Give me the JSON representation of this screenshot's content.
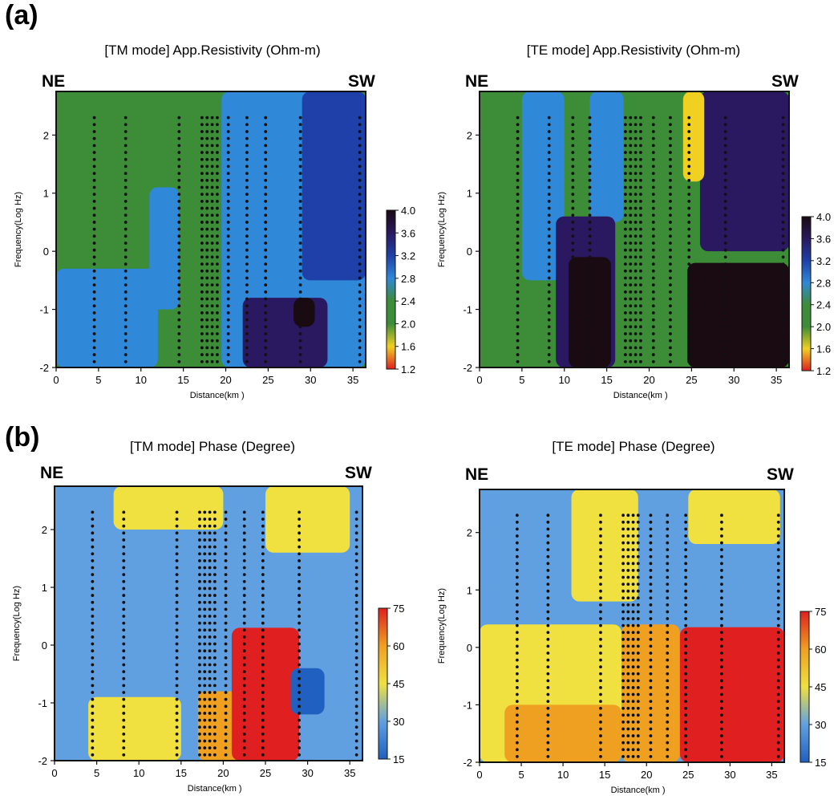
{
  "panels": {
    "a": "(a)",
    "b": "(b)"
  },
  "chart_data": [
    {
      "type": "heatmap",
      "title": "[TM mode] App.Resistivity (Ohm-m)",
      "left_label": "NE",
      "right_label": "SW",
      "xlabel": "Distance(km )",
      "ylabel": "Frequency(Log Hz)",
      "xlim": [
        0,
        36.5
      ],
      "ylim": [
        -2,
        2.75
      ],
      "x_ticks": [
        0,
        5,
        10,
        15,
        20,
        25,
        30,
        35
      ],
      "y_ticks": [
        -2,
        -1,
        0,
        1,
        2
      ],
      "colorbar": {
        "ticks": [
          "4.0",
          "3.6",
          "3.2",
          "2.8",
          "2.4",
          "2.0",
          "1.6",
          "1.2"
        ],
        "colors": [
          "#1a0a12",
          "#2a1860",
          "#1e40a8",
          "#2f88d8",
          "#3c8c38",
          "#3c8c38",
          "#f0d020",
          "#e02020"
        ]
      },
      "stations_km": [
        4.5,
        8.2,
        14.5,
        17.2,
        17.8,
        18.4,
        19.0,
        20.3,
        22.5,
        24.7,
        28.8,
        35.8
      ],
      "dominant_zones": [
        {
          "x": [
            0,
            36.5
          ],
          "y": [
            -2,
            2.75
          ],
          "value": "2.4"
        },
        {
          "x": [
            19.5,
            36.5
          ],
          "y": [
            -2,
            2.75
          ],
          "value": "2.8"
        },
        {
          "x": [
            0,
            12
          ],
          "y": [
            -2,
            -0.3
          ],
          "value": "2.8"
        },
        {
          "x": [
            11,
            14.5
          ],
          "y": [
            -1,
            1.1
          ],
          "value": "2.8"
        },
        {
          "x": [
            29,
            36.5
          ],
          "y": [
            -0.5,
            2.75
          ],
          "value": "3.2"
        },
        {
          "x": [
            22,
            32
          ],
          "y": [
            -2,
            -0.8
          ],
          "value": "3.6"
        },
        {
          "x": [
            28,
            30.5
          ],
          "y": [
            -1.3,
            -0.8
          ],
          "value": "4.0"
        }
      ]
    },
    {
      "type": "heatmap",
      "title": "[TE mode] App.Resistivity (Ohm-m)",
      "left_label": "NE",
      "right_label": "SW",
      "xlabel": "Distance(km )",
      "ylabel": "Frequency(Log Hz)",
      "xlim": [
        0,
        36.5
      ],
      "ylim": [
        -2,
        2.75
      ],
      "x_ticks": [
        0,
        5,
        10,
        15,
        20,
        25,
        30,
        35
      ],
      "y_ticks": [
        -2,
        -1,
        0,
        1,
        2
      ],
      "colorbar": {
        "ticks": [
          "4.0",
          "3.6",
          "3.2",
          "2.8",
          "2.4",
          "2.0",
          "1.6",
          "1.2"
        ],
        "colors": [
          "#1a0a12",
          "#2a1860",
          "#1e40a8",
          "#2f88d8",
          "#3c8c38",
          "#3c8c38",
          "#f0d020",
          "#e02020"
        ]
      },
      "stations_km": [
        4.5,
        8.2,
        11.0,
        13.0,
        17.2,
        17.8,
        18.4,
        19.0,
        20.5,
        22.5,
        24.7,
        29.0,
        35.8
      ],
      "dominant_zones": [
        {
          "x": [
            0,
            36.5
          ],
          "y": [
            -2,
            2.75
          ],
          "value": "2.4"
        },
        {
          "x": [
            5,
            10
          ],
          "y": [
            -0.5,
            2.75
          ],
          "value": "2.8"
        },
        {
          "x": [
            13,
            17
          ],
          "y": [
            0.5,
            2.75
          ],
          "value": "2.8"
        },
        {
          "x": [
            9,
            16
          ],
          "y": [
            -2,
            0.6
          ],
          "value": "3.6"
        },
        {
          "x": [
            10.5,
            15.5
          ],
          "y": [
            -2,
            -0.1
          ],
          "value": "4.0"
        },
        {
          "x": [
            26,
            36.5
          ],
          "y": [
            0,
            2.75
          ],
          "value": "3.6"
        },
        {
          "x": [
            24.5,
            36.5
          ],
          "y": [
            -2,
            -0.2
          ],
          "value": "4.0"
        },
        {
          "x": [
            24,
            26.5
          ],
          "y": [
            1.2,
            2.75
          ],
          "value": "1.6"
        }
      ]
    },
    {
      "type": "heatmap",
      "title": "[TM mode] Phase (Degree)",
      "left_label": "NE",
      "right_label": "SW",
      "xlabel": "Distance(km )",
      "ylabel": "Frequency(Log Hz)",
      "xlim": [
        0,
        36.5
      ],
      "ylim": [
        -2,
        2.75
      ],
      "x_ticks": [
        0,
        5,
        10,
        15,
        20,
        25,
        30,
        35
      ],
      "y_ticks": [
        -2,
        -1,
        0,
        1,
        2
      ],
      "colorbar": {
        "ticks": [
          "75",
          "60",
          "45",
          "30",
          "15"
        ],
        "colors": [
          "#e02020",
          "#f0a020",
          "#f0e040",
          "#60a0e0",
          "#2060c0"
        ]
      },
      "stations_km": [
        4.5,
        8.2,
        14.5,
        17.2,
        17.8,
        18.4,
        19.0,
        20.3,
        22.5,
        24.7,
        29.0,
        35.8
      ],
      "dominant_zones": [
        {
          "x": [
            0,
            36.5
          ],
          "y": [
            -2,
            2.75
          ],
          "value": "30"
        },
        {
          "x": [
            7,
            20
          ],
          "y": [
            2,
            2.75
          ],
          "value": "45"
        },
        {
          "x": [
            25,
            35
          ],
          "y": [
            1.6,
            2.75
          ],
          "value": "45"
        },
        {
          "x": [
            4,
            15
          ],
          "y": [
            -2,
            -0.9
          ],
          "value": "45"
        },
        {
          "x": [
            17,
            22
          ],
          "y": [
            -2,
            -0.8
          ],
          "value": "60"
        },
        {
          "x": [
            21,
            29
          ],
          "y": [
            -2,
            0.3
          ],
          "value": "75"
        },
        {
          "x": [
            28,
            32
          ],
          "y": [
            -1.2,
            -0.4
          ],
          "value": "15"
        }
      ]
    },
    {
      "type": "heatmap",
      "title": "[TE mode] Phase (Degree)",
      "left_label": "NE",
      "right_label": "SW",
      "xlabel": "Distance(km )",
      "ylabel": "Frequency(Log Hz)",
      "xlim": [
        0,
        36.5
      ],
      "ylim": [
        -2,
        2.75
      ],
      "x_ticks": [
        0,
        5,
        10,
        15,
        20,
        25,
        30,
        35
      ],
      "y_ticks": [
        -2,
        -1,
        0,
        1,
        2
      ],
      "colorbar": {
        "ticks": [
          "75",
          "60",
          "45",
          "30",
          "15"
        ],
        "colors": [
          "#e02020",
          "#f0a020",
          "#f0e040",
          "#60a0e0",
          "#2060c0"
        ]
      },
      "stations_km": [
        4.5,
        8.2,
        14.5,
        17.2,
        17.8,
        18.4,
        19.0,
        20.5,
        22.5,
        24.7,
        29.0,
        35.8
      ],
      "dominant_zones": [
        {
          "x": [
            0,
            36.5
          ],
          "y": [
            -2,
            2.75
          ],
          "value": "30"
        },
        {
          "x": [
            11,
            19
          ],
          "y": [
            0.8,
            2.75
          ],
          "value": "45"
        },
        {
          "x": [
            25,
            36
          ],
          "y": [
            1.8,
            2.75
          ],
          "value": "45"
        },
        {
          "x": [
            0,
            17
          ],
          "y": [
            -2,
            0.4
          ],
          "value": "45"
        },
        {
          "x": [
            3,
            17
          ],
          "y": [
            -2,
            -1
          ],
          "value": "60"
        },
        {
          "x": [
            17,
            24
          ],
          "y": [
            -2,
            0.4
          ],
          "value": "60"
        },
        {
          "x": [
            24,
            36.5
          ],
          "y": [
            -2,
            0.35
          ],
          "value": "75"
        }
      ]
    }
  ]
}
